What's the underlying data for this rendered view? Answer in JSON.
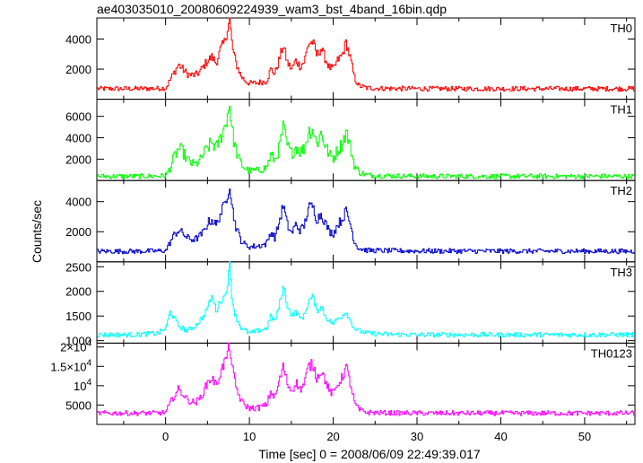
{
  "title": "ae403035010_20080609224939_wam3_bst_4band_16bin.qdp",
  "chart_data": {
    "type": "line",
    "title": "ae403035010_20080609224939_wam3_bst_4band_16bin.qdp",
    "xlabel": "Time [sec] 0 = 2008/06/09 22:49:39.017",
    "ylabel": "Counts/sec",
    "xlim": [
      -8.2,
      56
    ],
    "xticks": [
      0,
      10,
      20,
      30,
      40,
      50
    ],
    "xtick_labels": [
      "0",
      "10",
      "20",
      "30",
      "40",
      "50"
    ],
    "grid": false,
    "legend": "none",
    "panels": [
      {
        "name": "TH0",
        "color": "#ff0000",
        "ylim": [
          0,
          5400
        ],
        "yticks": [
          2000,
          4000
        ],
        "ytick_labels": [
          "2000",
          "4000"
        ],
        "baseline": 700,
        "x": [
          -8,
          -4,
          -1,
          0,
          0.5,
          1.0,
          1.5,
          2.0,
          2.5,
          3.0,
          3.5,
          4.0,
          4.5,
          5.0,
          5.5,
          6.0,
          6.5,
          7.0,
          7.3,
          7.6,
          7.9,
          8.3,
          8.7,
          9.0,
          9.5,
          10,
          11,
          12,
          12.5,
          13,
          13.5,
          14,
          14.5,
          15,
          15.5,
          16,
          16.5,
          17,
          17.5,
          18,
          18.5,
          19,
          19.5,
          20,
          20.5,
          21,
          21.5,
          22,
          22.5,
          23,
          24,
          26,
          30,
          40,
          50,
          56
        ],
        "y": [
          700,
          700,
          720,
          750,
          1300,
          1800,
          2300,
          2000,
          1700,
          1600,
          1600,
          1800,
          2200,
          2600,
          2800,
          2400,
          3300,
          3800,
          4600,
          5300,
          3500,
          2500,
          1900,
          1500,
          1200,
          1050,
          1100,
          1200,
          2000,
          1700,
          2600,
          3600,
          2400,
          2000,
          2600,
          2200,
          2500,
          3700,
          3800,
          2900,
          3400,
          2700,
          2100,
          2000,
          2600,
          2900,
          3800,
          2700,
          1400,
          900,
          750,
          720,
          700,
          700,
          700,
          700
        ]
      },
      {
        "name": "TH1",
        "color": "#00ff00",
        "ylim": [
          0,
          7600
        ],
        "yticks": [
          2000,
          4000,
          6000
        ],
        "ytick_labels": [
          "2000",
          "4000",
          "6000"
        ],
        "baseline": 400,
        "x": [
          -8,
          -4,
          -1,
          0,
          0.5,
          1.0,
          1.5,
          2.0,
          2.5,
          3.0,
          3.5,
          4.0,
          4.5,
          5.0,
          5.5,
          6.0,
          6.5,
          7.0,
          7.3,
          7.6,
          7.9,
          8.3,
          8.7,
          9.0,
          9.5,
          10,
          11,
          12,
          12.5,
          13,
          13.5,
          14,
          14.5,
          15,
          15.5,
          16,
          16.5,
          17,
          17.5,
          18,
          18.5,
          19,
          19.5,
          20,
          20.5,
          21,
          21.5,
          22,
          22.5,
          23,
          24,
          26,
          30,
          40,
          50,
          56
        ],
        "y": [
          400,
          400,
          420,
          450,
          1200,
          2200,
          3000,
          2700,
          2000,
          1600,
          1500,
          1800,
          2500,
          3100,
          3600,
          3000,
          4000,
          5000,
          6000,
          7200,
          4600,
          3000,
          2000,
          1500,
          1100,
          900,
          950,
          1200,
          2400,
          1900,
          3000,
          5000,
          3200,
          2500,
          3200,
          2700,
          3000,
          4600,
          4800,
          3400,
          4500,
          3300,
          2400,
          2100,
          2900,
          3400,
          4600,
          3100,
          1400,
          800,
          500,
          450,
          400,
          400,
          400,
          400
        ]
      },
      {
        "name": "TH2",
        "color": "#0000cc",
        "ylim": [
          0,
          5400
        ],
        "yticks": [
          2000,
          4000
        ],
        "ytick_labels": [
          "2000",
          "4000"
        ],
        "baseline": 700,
        "x": [
          -8,
          -4,
          -1,
          0,
          0.5,
          1.0,
          1.5,
          2.0,
          2.5,
          3.0,
          3.5,
          4.0,
          4.5,
          5.0,
          5.5,
          6.0,
          6.5,
          7.0,
          7.3,
          7.6,
          7.9,
          8.3,
          8.7,
          9.0,
          9.5,
          10,
          11,
          12,
          12.5,
          13,
          13.5,
          14,
          14.5,
          15,
          15.5,
          16,
          16.5,
          17,
          17.5,
          18,
          18.5,
          19,
          19.5,
          20,
          20.5,
          21,
          21.5,
          22,
          22.5,
          23,
          24,
          26,
          30,
          40,
          50,
          56
        ],
        "y": [
          700,
          700,
          720,
          750,
          1300,
          1800,
          2100,
          1900,
          1600,
          1500,
          1500,
          1700,
          2000,
          2600,
          2800,
          2400,
          3200,
          3800,
          4400,
          5200,
          3600,
          2400,
          1800,
          1400,
          1100,
          1000,
          1050,
          1200,
          2000,
          1600,
          2600,
          3800,
          2400,
          1900,
          2500,
          2100,
          2400,
          3600,
          3700,
          2800,
          3200,
          2600,
          2000,
          1900,
          2500,
          2800,
          3400,
          2500,
          1300,
          900,
          760,
          740,
          720,
          710,
          710,
          700
        ]
      },
      {
        "name": "TH3",
        "color": "#00ffff",
        "ylim": [
          950,
          2600
        ],
        "yticks": [
          1000,
          1500,
          2000,
          2500
        ],
        "ytick_labels": [
          "1000",
          "1500",
          "2000",
          "2500"
        ],
        "baseline": 1120,
        "x": [
          -8,
          -4,
          -1,
          0,
          0.5,
          1.0,
          1.5,
          2.0,
          2.5,
          3.0,
          3.5,
          4.0,
          4.5,
          5.0,
          5.5,
          6.0,
          6.5,
          7.0,
          7.3,
          7.6,
          7.9,
          8.3,
          8.7,
          9.0,
          9.5,
          10,
          11,
          12,
          12.5,
          13,
          13.5,
          14,
          14.5,
          15,
          15.5,
          16,
          16.5,
          17,
          17.5,
          18,
          18.5,
          19,
          19.5,
          20,
          20.5,
          21,
          21.5,
          22,
          22.5,
          23,
          24,
          26,
          30,
          40,
          50,
          56
        ],
        "y": [
          1120,
          1120,
          1150,
          1250,
          1600,
          1450,
          1300,
          1250,
          1200,
          1250,
          1300,
          1400,
          1500,
          1700,
          1900,
          1600,
          1800,
          1900,
          2100,
          2550,
          1800,
          1500,
          1350,
          1250,
          1200,
          1150,
          1200,
          1250,
          1500,
          1400,
          1700,
          2100,
          1700,
          1500,
          1600,
          1450,
          1500,
          1800,
          1900,
          1600,
          1700,
          1500,
          1400,
          1350,
          1450,
          1500,
          1600,
          1400,
          1250,
          1200,
          1150,
          1130,
          1120,
          1120,
          1120,
          1120
        ]
      },
      {
        "name": "TH0123",
        "color": "#ff00ff",
        "ylim": [
          0,
          21000
        ],
        "yticks": [
          5000,
          10000,
          15000,
          20000
        ],
        "ytick_labels": [
          "5000",
          "10^4",
          "1.5×10^4",
          "2×10^4"
        ],
        "baseline": 2900,
        "x": [
          -8,
          -4,
          -1,
          0,
          0.5,
          1.0,
          1.5,
          2.0,
          2.5,
          3.0,
          3.5,
          4.0,
          4.5,
          5.0,
          5.5,
          6.0,
          6.5,
          7.0,
          7.3,
          7.6,
          7.9,
          8.3,
          8.7,
          9.0,
          9.5,
          10,
          11,
          12,
          12.5,
          13,
          13.5,
          14,
          14.5,
          15,
          15.5,
          16,
          16.5,
          17,
          17.5,
          18,
          18.5,
          19,
          19.5,
          20,
          20.5,
          21,
          21.5,
          22,
          22.5,
          23,
          24,
          26,
          30,
          40,
          50,
          56
        ],
        "y": [
          2900,
          2900,
          2950,
          3100,
          5500,
          7500,
          9000,
          8000,
          6500,
          5800,
          5700,
          6500,
          8500,
          11000,
          12000,
          10000,
          13500,
          16000,
          18000,
          20500,
          14500,
          10000,
          7500,
          6000,
          4800,
          4200,
          4300,
          5000,
          8500,
          7000,
          11000,
          15000,
          10500,
          8500,
          11000,
          9000,
          10500,
          15000,
          15500,
          12000,
          14000,
          11500,
          8500,
          8000,
          10500,
          12000,
          15000,
          10500,
          5500,
          3800,
          3100,
          3000,
          2900,
          2900,
          2900,
          2900
        ]
      }
    ]
  }
}
